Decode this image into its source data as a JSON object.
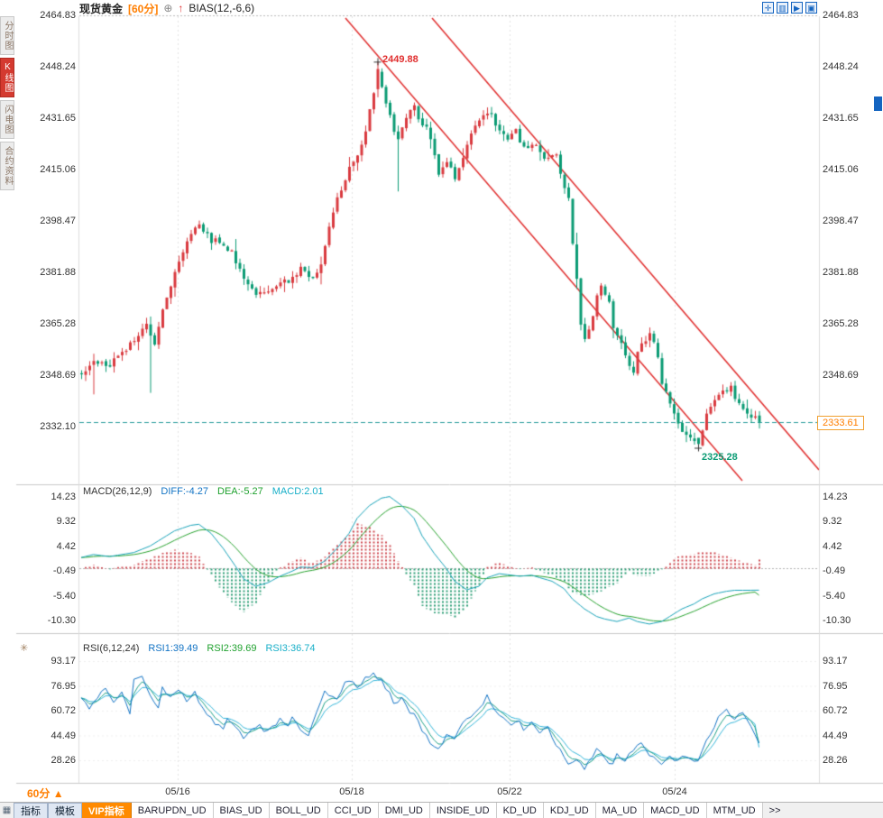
{
  "header": {
    "symbol": "现货黄金",
    "period": "[60分]",
    "add_icon": "⊕",
    "arrow_icon": "↑",
    "indicator": "BIAS(12,-6,6)",
    "toolbar": [
      {
        "name": "crosshair-icon",
        "glyph": "✛"
      },
      {
        "name": "kline-view-icon",
        "glyph": "▥"
      },
      {
        "name": "playback-icon",
        "glyph": "▶"
      },
      {
        "name": "layout-icon",
        "glyph": "▣"
      }
    ]
  },
  "sidebar": {
    "tabs": [
      {
        "name": "sidebar-tab-time-chart",
        "label": "分时图",
        "active": false
      },
      {
        "name": "sidebar-tab-kline-chart",
        "label": "K线图",
        "active": true
      },
      {
        "name": "sidebar-tab-flash-chart",
        "label": "闪电图",
        "active": false
      },
      {
        "name": "sidebar-tab-contract-info",
        "label": "合约资料",
        "active": false
      }
    ]
  },
  "main_chart": {
    "y_ticks": [
      "2464.83",
      "2448.24",
      "2431.65",
      "2415.06",
      "2398.47",
      "2381.88",
      "2365.28",
      "2348.69",
      "2332.10"
    ],
    "high_label": "2449.88",
    "low_label": "2325.28",
    "last_price": "2333.61"
  },
  "macd_panel": {
    "title": "MACD(26,12,9)",
    "diff_label": "DIFF:-4.27",
    "dea_label": "DEA:-5.27",
    "macd_label": "MACD:2.01",
    "y_ticks": [
      "14.23",
      "9.32",
      "4.42",
      "-0.49",
      "-5.40",
      "-10.30"
    ]
  },
  "rsi_panel": {
    "icon": "✳",
    "title": "RSI(6,12,24)",
    "rsi1_label": "RSI1:39.49",
    "rsi2_label": "RSI2:39.69",
    "rsi3_label": "RSI3:36.74",
    "y_ticks": [
      "93.17",
      "76.95",
      "60.72",
      "44.49",
      "28.26"
    ]
  },
  "x_axis": {
    "period_label": "60分",
    "period_arrow": "▲",
    "dates": [
      "05/16",
      "05/18",
      "05/22",
      "05/24"
    ]
  },
  "bottom_bar": {
    "menu_icon": "▦",
    "tabs": [
      {
        "name": "tab-indicators",
        "label": "指标",
        "style": "sys"
      },
      {
        "name": "tab-templates",
        "label": "模板",
        "style": "sys"
      },
      {
        "name": "tab-vip-indicators",
        "label": "VIP指标",
        "style": "vip"
      },
      {
        "name": "tab-barupdn-ud",
        "label": "BARUPDN_UD",
        "style": "ud"
      },
      {
        "name": "tab-bias-ud",
        "label": "BIAS_UD",
        "style": "ud"
      },
      {
        "name": "tab-boll-ud",
        "label": "BOLL_UD",
        "style": "ud"
      },
      {
        "name": "tab-cci-ud",
        "label": "CCI_UD",
        "style": "ud"
      },
      {
        "name": "tab-dmi-ud",
        "label": "DMI_UD",
        "style": "ud"
      },
      {
        "name": "tab-inside-ud",
        "label": "INSIDE_UD",
        "style": "ud"
      },
      {
        "name": "tab-kd-ud",
        "label": "KD_UD",
        "style": "ud"
      },
      {
        "name": "tab-kdj-ud",
        "label": "KDJ_UD",
        "style": "ud"
      },
      {
        "name": "tab-ma-ud",
        "label": "MA_UD",
        "style": "ud"
      },
      {
        "name": "tab-macd-ud",
        "label": "MACD_UD",
        "style": "ud"
      },
      {
        "name": "tab-mtm-ud",
        "label": "MTM_UD",
        "style": "ud"
      },
      {
        "name": "tab-more",
        "label": ">>",
        "style": "more"
      }
    ]
  },
  "colors": {
    "up": "#d93a3f",
    "down": "#0b9b74",
    "accent": "#ff7e00",
    "trend_line": "#e02f2f",
    "last_price_line": "#2a9d9d",
    "diff_line": "#17a2b8",
    "dea_line": "#27a22e",
    "rsi1_line": "#1273c4",
    "rsi2_line": "#1fa187",
    "rsi3_line": "#35b6d9",
    "hist_up": "#cf4a52",
    "hist_down": "#2a9d74"
  },
  "chart_data": {
    "type": "candlestick",
    "title": "现货黄金 60分 K线",
    "candle_count": 168,
    "price_axis_ticks": [
      2464.83,
      2448.24,
      2431.65,
      2415.06,
      2398.47,
      2381.88,
      2365.28,
      2348.69,
      2332.1
    ],
    "macd_axis_ticks": [
      14.23,
      9.32,
      4.42,
      -0.49,
      -5.4,
      -10.3
    ],
    "rsi_axis_ticks": [
      93.17,
      76.95,
      60.72,
      44.49,
      28.26
    ],
    "dates": [
      "05/16",
      "05/18",
      "05/22",
      "05/24"
    ],
    "key_points": {
      "high": 2449.88,
      "low": 2325.28,
      "last": 2333.61,
      "macd": {
        "diff": -4.27,
        "dea": -5.27,
        "macd": 2.01
      },
      "rsi": {
        "rsi1": 39.49,
        "rsi2": 39.69,
        "rsi3": 36.74
      }
    },
    "price_waypoints": [
      [
        0,
        2349
      ],
      [
        3,
        2353
      ],
      [
        7,
        2352
      ],
      [
        10,
        2356
      ],
      [
        13,
        2360
      ],
      [
        16,
        2366
      ],
      [
        18,
        2358
      ],
      [
        20,
        2370
      ],
      [
        24,
        2386
      ],
      [
        27,
        2394
      ],
      [
        29,
        2397
      ],
      [
        32,
        2392
      ],
      [
        34,
        2392
      ],
      [
        37,
        2388
      ],
      [
        40,
        2380
      ],
      [
        43,
        2375
      ],
      [
        46,
        2376
      ],
      [
        49,
        2378
      ],
      [
        52,
        2380
      ],
      [
        54,
        2383
      ],
      [
        57,
        2380
      ],
      [
        59,
        2385
      ],
      [
        61,
        2397
      ],
      [
        63,
        2406
      ],
      [
        66,
        2415
      ],
      [
        68,
        2419
      ],
      [
        70,
        2428
      ],
      [
        72,
        2440
      ],
      [
        73,
        2447
      ],
      [
        75,
        2436
      ],
      [
        77,
        2428
      ],
      [
        78,
        2425
      ],
      [
        80,
        2432
      ],
      [
        82,
        2436
      ],
      [
        83,
        2432
      ],
      [
        85,
        2428
      ],
      [
        87,
        2420
      ],
      [
        88,
        2414
      ],
      [
        90,
        2418
      ],
      [
        92,
        2412
      ],
      [
        93,
        2415
      ],
      [
        95,
        2424
      ],
      [
        97,
        2430
      ],
      [
        100,
        2434
      ],
      [
        102,
        2430
      ],
      [
        103,
        2428
      ],
      [
        105,
        2425
      ],
      [
        107,
        2428
      ],
      [
        108,
        2424
      ],
      [
        110,
        2422
      ],
      [
        112,
        2424
      ],
      [
        113,
        2420
      ],
      [
        115,
        2418
      ],
      [
        117,
        2420
      ],
      [
        118,
        2414
      ],
      [
        120,
        2405
      ],
      [
        121,
        2392
      ],
      [
        122,
        2380
      ],
      [
        123,
        2366
      ],
      [
        124,
        2360
      ],
      [
        126,
        2368
      ],
      [
        127,
        2375
      ],
      [
        128,
        2378
      ],
      [
        130,
        2372
      ],
      [
        131,
        2364
      ],
      [
        133,
        2359
      ],
      [
        134,
        2355
      ],
      [
        136,
        2350
      ],
      [
        137,
        2356
      ],
      [
        139,
        2360
      ],
      [
        140,
        2362
      ],
      [
        142,
        2355
      ],
      [
        143,
        2346
      ],
      [
        145,
        2340
      ],
      [
        147,
        2334
      ],
      [
        148,
        2331
      ],
      [
        150,
        2329
      ],
      [
        152,
        2326.5
      ],
      [
        153,
        2330
      ],
      [
        154,
        2336
      ],
      [
        156,
        2340
      ],
      [
        158,
        2343
      ],
      [
        160,
        2345
      ],
      [
        161,
        2342
      ],
      [
        163,
        2338
      ],
      [
        164,
        2336
      ],
      [
        166,
        2334.5
      ],
      [
        167,
        2333.8
      ]
    ],
    "macd_diff_waypoints": [
      [
        0,
        2.2
      ],
      [
        3,
        2.8
      ],
      [
        7,
        2.4
      ],
      [
        10,
        2.8
      ],
      [
        13,
        3.2
      ],
      [
        17,
        4.5
      ],
      [
        20,
        6
      ],
      [
        23,
        7.5
      ],
      [
        27,
        8.6
      ],
      [
        29,
        8.8
      ],
      [
        32,
        7
      ],
      [
        35,
        4
      ],
      [
        38,
        0.5
      ],
      [
        40,
        -2
      ],
      [
        43,
        -3.5
      ],
      [
        46,
        -2.8
      ],
      [
        49,
        -1.5
      ],
      [
        52,
        -0.5
      ],
      [
        54,
        0.3
      ],
      [
        57,
        0.2
      ],
      [
        60,
        1.5
      ],
      [
        63,
        4
      ],
      [
        66,
        7
      ],
      [
        68,
        10
      ],
      [
        71,
        12.5
      ],
      [
        74,
        14
      ],
      [
        76,
        14.3
      ],
      [
        79,
        12.5
      ],
      [
        82,
        10
      ],
      [
        84,
        6.5
      ],
      [
        87,
        3
      ],
      [
        90,
        0
      ],
      [
        92,
        -2.5
      ],
      [
        95,
        -4.2
      ],
      [
        98,
        -3.5
      ],
      [
        100,
        -1.8
      ],
      [
        103,
        -1
      ],
      [
        105,
        -1.2
      ],
      [
        108,
        -1.5
      ],
      [
        111,
        -1.3
      ],
      [
        113,
        -1.8
      ],
      [
        116,
        -2.5
      ],
      [
        119,
        -4
      ],
      [
        121,
        -6
      ],
      [
        124,
        -8
      ],
      [
        127,
        -9.5
      ],
      [
        129,
        -10
      ],
      [
        132,
        -10.5
      ],
      [
        135,
        -9.8
      ],
      [
        137,
        -10.5
      ],
      [
        140,
        -11
      ],
      [
        143,
        -10.5
      ],
      [
        145,
        -9.5
      ],
      [
        148,
        -8
      ],
      [
        151,
        -7
      ],
      [
        153,
        -6
      ],
      [
        156,
        -5
      ],
      [
        159,
        -4.5
      ],
      [
        161,
        -4.3
      ],
      [
        164,
        -4.3
      ],
      [
        167,
        -4.27
      ]
    ],
    "rsi_waypoints": [
      [
        0,
        68
      ],
      [
        2,
        62
      ],
      [
        4,
        70
      ],
      [
        6,
        75
      ],
      [
        8,
        66
      ],
      [
        10,
        72
      ],
      [
        12,
        60
      ],
      [
        13,
        80
      ],
      [
        15,
        84
      ],
      [
        17,
        70
      ],
      [
        19,
        62
      ],
      [
        20,
        75
      ],
      [
        22,
        70
      ],
      [
        24,
        74
      ],
      [
        26,
        68
      ],
      [
        28,
        72
      ],
      [
        29,
        65
      ],
      [
        31,
        58
      ],
      [
        33,
        52
      ],
      [
        35,
        48
      ],
      [
        36,
        55
      ],
      [
        38,
        50
      ],
      [
        40,
        42
      ],
      [
        42,
        48
      ],
      [
        44,
        52
      ],
      [
        45,
        46
      ],
      [
        47,
        50
      ],
      [
        49,
        55
      ],
      [
        51,
        52
      ],
      [
        52,
        58
      ],
      [
        54,
        48
      ],
      [
        56,
        45
      ],
      [
        58,
        60
      ],
      [
        60,
        75
      ],
      [
        61,
        72
      ],
      [
        63,
        68
      ],
      [
        65,
        78
      ],
      [
        67,
        80
      ],
      [
        68,
        76
      ],
      [
        70,
        82
      ],
      [
        72,
        85
      ],
      [
        74,
        80
      ],
      [
        76,
        72
      ],
      [
        77,
        65
      ],
      [
        79,
        68
      ],
      [
        81,
        60
      ],
      [
        83,
        55
      ],
      [
        84,
        48
      ],
      [
        86,
        40
      ],
      [
        88,
        35
      ],
      [
        90,
        45
      ],
      [
        92,
        42
      ],
      [
        93,
        48
      ],
      [
        95,
        55
      ],
      [
        97,
        60
      ],
      [
        99,
        65
      ],
      [
        100,
        70
      ],
      [
        102,
        62
      ],
      [
        104,
        55
      ],
      [
        106,
        50
      ],
      [
        108,
        55
      ],
      [
        109,
        48
      ],
      [
        111,
        52
      ],
      [
        113,
        45
      ],
      [
        115,
        50
      ],
      [
        116,
        42
      ],
      [
        118,
        35
      ],
      [
        120,
        25
      ],
      [
        122,
        30
      ],
      [
        124,
        22
      ],
      [
        125,
        28
      ],
      [
        127,
        35
      ],
      [
        129,
        30
      ],
      [
        131,
        25
      ],
      [
        132,
        32
      ],
      [
        134,
        28
      ],
      [
        136,
        35
      ],
      [
        138,
        40
      ],
      [
        139,
        35
      ],
      [
        141,
        30
      ],
      [
        143,
        25
      ],
      [
        145,
        30
      ],
      [
        147,
        28
      ],
      [
        148,
        32
      ],
      [
        150,
        30
      ],
      [
        152,
        28
      ],
      [
        154,
        40
      ],
      [
        156,
        50
      ],
      [
        157,
        58
      ],
      [
        159,
        62
      ],
      [
        161,
        55
      ],
      [
        163,
        60
      ],
      [
        165,
        52
      ],
      [
        166,
        45
      ],
      [
        167,
        39.5
      ]
    ]
  }
}
